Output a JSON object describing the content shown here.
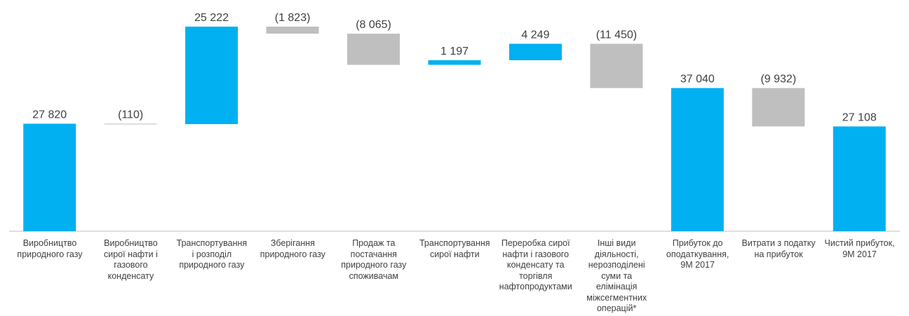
{
  "chart_data": {
    "type": "waterfall",
    "categories": [
      "Виробництво\nприродного газу",
      "Виробництво\nсирої нафти і\nгазового\nконденсату",
      "Транспортування\nі розподіл\nприродного газу",
      "Зберігання\nприродного газу",
      "Продаж та\nпостачання\nприродного газу\nспоживачам",
      "Транспортування\nсирої нафти",
      "Переробка сирої\nнафти і газового\nконденсату та\nторгівля\nнафтопродуктами",
      "Інші  види\nдіяльності,\nнерозподілені\nсуми та\nелімінація\nміжсегментних\nоперацій*",
      "Прибуток до\nоподаткування,\n9М 2017",
      "Витрати з податку\nна прибуток",
      "Чистий прибуток,\n9М 2017"
    ],
    "values": [
      27820,
      -110,
      25222,
      -1823,
      -8065,
      1197,
      4249,
      -11450,
      37040,
      -9932,
      27108
    ],
    "value_labels": [
      "27 820",
      "(110)",
      "25 222",
      "(1 823)",
      "(8 065)",
      "1 197",
      "4 249",
      "(11 450)",
      "37 040",
      "(9 932)",
      "27 108"
    ],
    "totals": [
      false,
      false,
      false,
      false,
      false,
      false,
      false,
      false,
      true,
      false,
      true
    ],
    "colors": {
      "increase": "#00b0f0",
      "decrease": "#bfbfbf",
      "total": "#00b0f0"
    }
  }
}
